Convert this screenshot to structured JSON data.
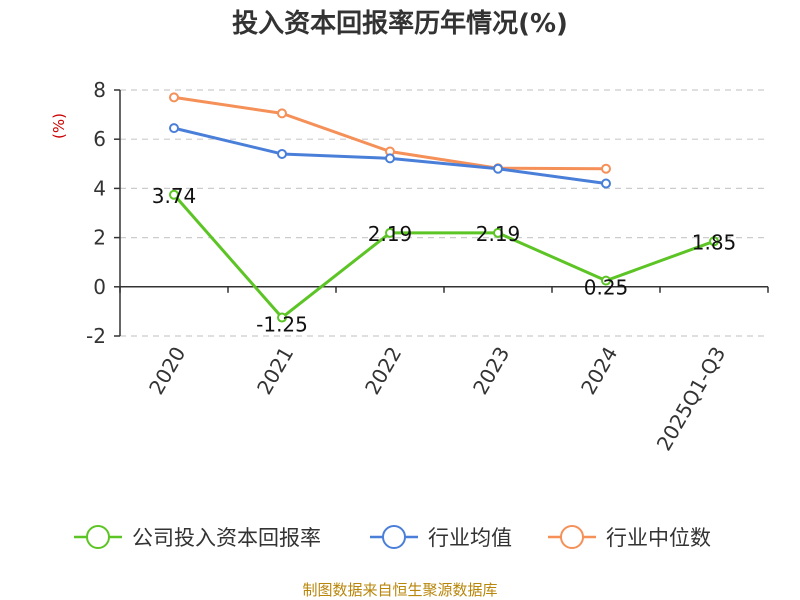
{
  "chart_data": {
    "type": "line",
    "title": "投入资本回报率历年情况(%)",
    "ylabel": "(%)",
    "categories": [
      "2020",
      "2021",
      "2022",
      "2023",
      "2024",
      "2025Q1-Q3"
    ],
    "yticks": [
      "8",
      "6",
      "4",
      "2",
      "0",
      "-2"
    ],
    "ylim": [
      -2,
      8
    ],
    "grid": true,
    "legend_position": "bottom",
    "series": [
      {
        "name": "公司投入资本回报率",
        "color": "#5cc424",
        "values": [
          3.74,
          -1.25,
          2.19,
          2.19,
          0.25,
          1.85
        ],
        "labels": [
          "3.74",
          "-1.25",
          "2.19",
          "2.19",
          "0.25",
          "1.85"
        ]
      },
      {
        "name": "行业均值",
        "color": "#4a7fd9",
        "values": [
          6.45,
          5.4,
          5.22,
          4.8,
          4.2,
          null
        ]
      },
      {
        "name": "行业中位数",
        "color": "#f59058",
        "values": [
          7.7,
          7.05,
          5.5,
          4.82,
          4.8,
          null
        ]
      }
    ]
  },
  "source": "制图数据来自恒生聚源数据库",
  "colors": {
    "ylabel": "#cc0000",
    "source": "#b8860b",
    "grid": "#cccccc",
    "axis": "#333333"
  }
}
